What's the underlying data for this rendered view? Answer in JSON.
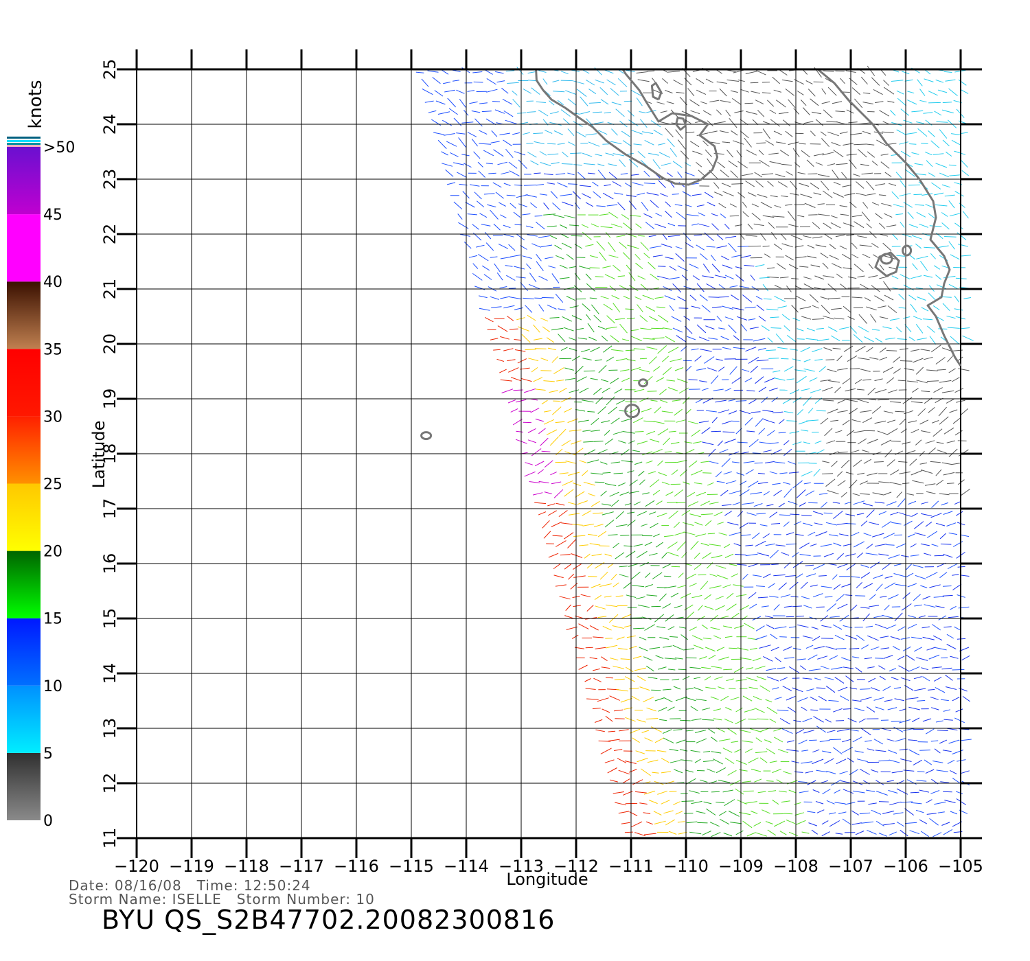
{
  "map": {
    "lon_range": [
      -120,
      -105
    ],
    "lat_range": [
      11,
      25
    ],
    "lon_ticks": [
      "−120",
      "−119",
      "−118",
      "−117",
      "−116",
      "−115",
      "−114",
      "−113",
      "−112",
      "−111",
      "−110",
      "−109",
      "−108",
      "−107",
      "−106",
      "−105"
    ],
    "lat_ticks": [
      "11",
      "12",
      "13",
      "14",
      "15",
      "16",
      "17",
      "18",
      "19",
      "20",
      "21",
      "22",
      "23",
      "24",
      "25"
    ],
    "xlabel": "Longitude",
    "ylabel": "Latitude",
    "grid": true,
    "land_color": "#777777"
  },
  "colorbar": {
    "unit": "knots",
    "tick_labels": [
      "0",
      "5",
      "10",
      "15",
      "20",
      "25",
      "30",
      "35",
      "40",
      "45",
      ">50"
    ],
    "bands": [
      {
        "from": 0,
        "to": 5,
        "color_top": "#303030",
        "color_bottom": "#8a8a8a"
      },
      {
        "from": 5,
        "to": 10,
        "color_top": "#0090ff",
        "color_bottom": "#00eeff"
      },
      {
        "from": 10,
        "to": 15,
        "color_top": "#0018ff",
        "color_bottom": "#0070ff"
      },
      {
        "from": 15,
        "to": 20,
        "color_top": "#006400",
        "color_bottom": "#00ff00"
      },
      {
        "from": 20,
        "to": 25,
        "color_top": "#ffc800",
        "color_bottom": "#ffff00"
      },
      {
        "from": 25,
        "to": 30,
        "color_top": "#ff2000",
        "color_bottom": "#ff9000"
      },
      {
        "from": 30,
        "to": 35,
        "color_top": "#ff0000",
        "color_bottom": "#ff1800"
      },
      {
        "from": 35,
        "to": 40,
        "color_top": "#3a1000",
        "color_bottom": "#c08050"
      },
      {
        "from": 40,
        "to": 45,
        "color_top": "#ff00ff",
        "color_bottom": "#ff00ff"
      },
      {
        "from": 45,
        "to": 50,
        "color_top": "#6a10d0",
        "color_bottom": "#c000d0"
      }
    ]
  },
  "footer": {
    "date_time": "Date: 08/16/08   Time: 12:50:24",
    "storm": "Storm Name: ISELLE   Storm Number: 10",
    "product": "BYU QS_S2B47702.20082300816"
  }
}
